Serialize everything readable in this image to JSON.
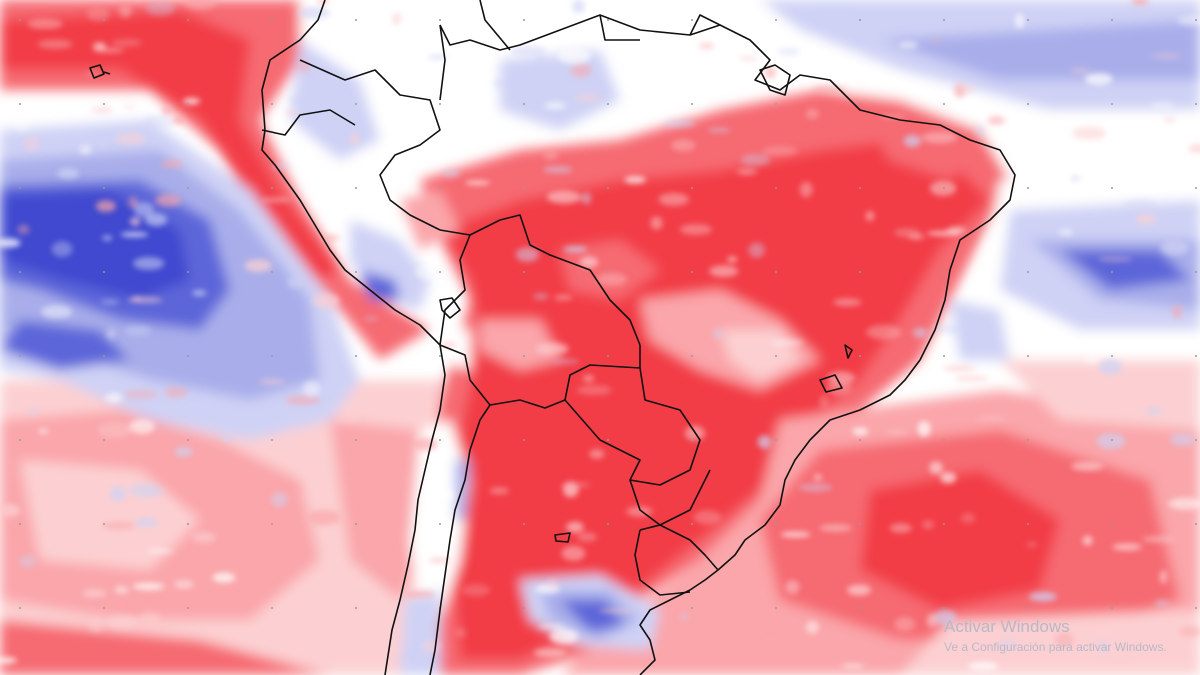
{
  "map": {
    "description_colors": {
      "strong_positive": "#f23c46",
      "positive": "#f66b72",
      "weak_positive": "#faa6aa",
      "very_weak_positive": "#fcd0d2",
      "neutral": "#ffffff",
      "weak_negative": "#cfd2f5",
      "negative": "#a9aeea",
      "strong_negative": "#5d66d9",
      "very_strong_negative": "#3f49cf",
      "coastline": "#111111",
      "grid_dots": "#9a9a9a"
    },
    "region": "South America",
    "legend_visible": false
  },
  "watermark": {
    "title": "Activar Windows",
    "subtitle": "Ve a Configuración para activar Windows."
  }
}
